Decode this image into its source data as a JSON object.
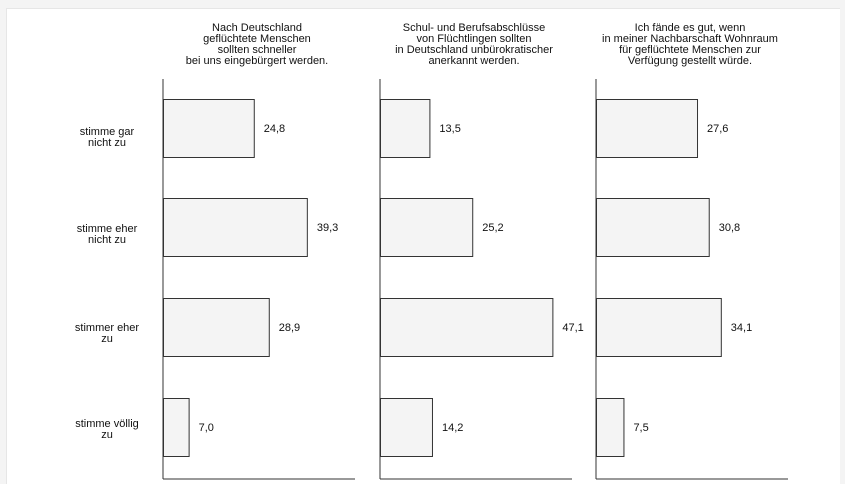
{
  "chart_data": {
    "type": "bar",
    "orientation": "horizontal",
    "categories": [
      "stimme gar\nnicht zu",
      "stimme eher\nnicht zu",
      "stimmer eher\nzu",
      "stimme völlig\nzu"
    ],
    "panels": [
      {
        "title": "Nach Deutschland\ngeflüchtete Menschen\nsollten schneller\nbei uns eingebürgert werden.",
        "values": [
          24.8,
          39.3,
          28.9,
          7.0
        ],
        "labels": [
          "24,8",
          "39,3",
          "28,9",
          "7,0"
        ]
      },
      {
        "title": "Schul- und Berufsabschlüsse\nvon Flüchtlingen sollten\nin Deutschland unbürokratischer\nanerkannt werden.",
        "values": [
          13.5,
          25.2,
          47.1,
          14.2
        ],
        "labels": [
          "13,5",
          "25,2",
          "47,1",
          "14,2"
        ]
      },
      {
        "title": "Ich fände es gut, wenn\nin meiner Nachbarschaft Wohnraum\nfür geflüchtete Menschen zur\nVerfügung gestellt würde.",
        "values": [
          27.6,
          30.8,
          34.1,
          7.5
        ],
        "labels": [
          "27,6",
          "30,8",
          "34,1",
          "7,5"
        ]
      }
    ],
    "xlim": [
      0,
      52
    ],
    "grid": false,
    "legend": "none",
    "colors": {
      "bar_fill": "#f4f4f4",
      "bar_stroke": "#333333",
      "axis": "#333333"
    }
  }
}
